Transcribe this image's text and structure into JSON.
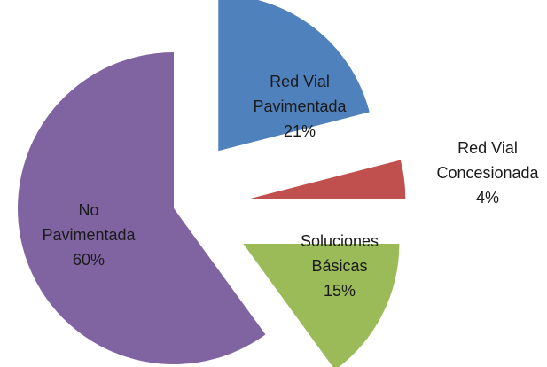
{
  "chart_data": {
    "type": "pie",
    "categories": [
      "Red Vial Pavimentada",
      "Red Vial Concesionada",
      "Soluciones Básicas",
      "No Pavimentada"
    ],
    "values": [
      21,
      4,
      15,
      60
    ],
    "value_labels": [
      "21%",
      "4%",
      "15%",
      "60%"
    ],
    "colors": [
      "#4f81bd",
      "#c0504d",
      "#9bbb59",
      "#8064a2"
    ]
  }
}
